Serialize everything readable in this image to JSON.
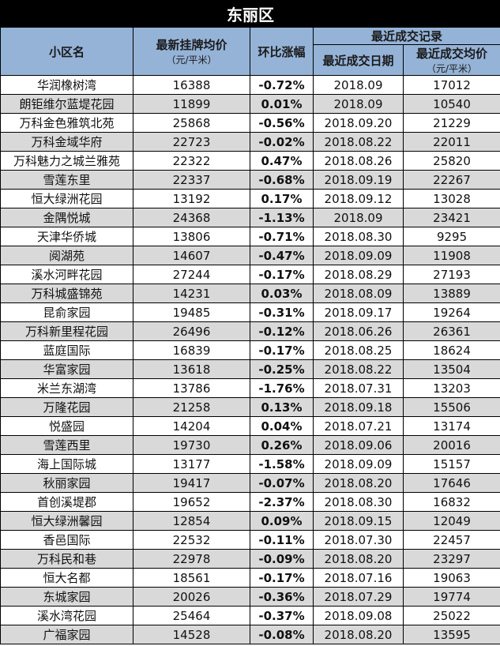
{
  "title": "东丽区",
  "headers": {
    "name": "小区名",
    "listing_price": "最新挂牌均价",
    "listing_unit": "（元/平米）",
    "change": "环比涨幅",
    "recent_group": "最近成交记录",
    "deal_date": "最近成交日期",
    "deal_price": "最近成交均价",
    "deal_unit": "（元/平米）"
  },
  "colors": {
    "header_bg": "#95b3d7",
    "negative": "#00b050",
    "positive": "#ff0000",
    "alt_row": "#d9d9d9"
  },
  "rows": [
    {
      "name": "华润橡树湾",
      "listing": "16388",
      "change": "-0.72%",
      "date": "2018.09",
      "deal": "17012"
    },
    {
      "name": "朗钜维尔蓝堤花园",
      "listing": "11899",
      "change": "0.01%",
      "date": "2018.09",
      "deal": "10540"
    },
    {
      "name": "万科金色雅筑北苑",
      "listing": "25868",
      "change": "-0.56%",
      "date": "2018.09.20",
      "deal": "21229"
    },
    {
      "name": "万科金域华府",
      "listing": "22723",
      "change": "-0.02%",
      "date": "2018.08.22",
      "deal": "22011"
    },
    {
      "name": "万科魅力之城兰雅苑",
      "listing": "22322",
      "change": "0.47%",
      "date": "2018.08.26",
      "deal": "25820"
    },
    {
      "name": "雪莲东里",
      "listing": "22337",
      "change": "-0.68%",
      "date": "2018.09.19",
      "deal": "22267"
    },
    {
      "name": "恒大绿洲花园",
      "listing": "13192",
      "change": "0.17%",
      "date": "2018.09.12",
      "deal": "13028"
    },
    {
      "name": "金隅悦城",
      "listing": "24368",
      "change": "-1.13%",
      "date": "2018.09",
      "deal": "23421"
    },
    {
      "name": "天津华侨城",
      "listing": "13806",
      "change": "-0.71%",
      "date": "2018.08.30",
      "deal": "9295"
    },
    {
      "name": "阅湖苑",
      "listing": "14607",
      "change": "-0.47%",
      "date": "2018.09.09",
      "deal": "11908"
    },
    {
      "name": "溪水河畔花园",
      "listing": "27244",
      "change": "-0.17%",
      "date": "2018.08.29",
      "deal": "27193"
    },
    {
      "name": "万科城盛锦苑",
      "listing": "14231",
      "change": "0.03%",
      "date": "2018.08.09",
      "deal": "13889"
    },
    {
      "name": "昆俞家园",
      "listing": "19485",
      "change": "-0.31%",
      "date": "2018.09.17",
      "deal": "19264"
    },
    {
      "name": "万科新里程花园",
      "listing": "26496",
      "change": "-0.12%",
      "date": "2018.06.26",
      "deal": "26361"
    },
    {
      "name": "蓝庭国际",
      "listing": "16839",
      "change": "-0.17%",
      "date": "2018.08.25",
      "deal": "18624"
    },
    {
      "name": "华富家园",
      "listing": "13618",
      "change": "-0.25%",
      "date": "2018.08.22",
      "deal": "13504"
    },
    {
      "name": "米兰东湖湾",
      "listing": "13786",
      "change": "-1.76%",
      "date": "2018.07.31",
      "deal": "13203"
    },
    {
      "name": "万隆花园",
      "listing": "21258",
      "change": "0.13%",
      "date": "2018.09.18",
      "deal": "15506"
    },
    {
      "name": "悦盛园",
      "listing": "14204",
      "change": "0.04%",
      "date": "2018.07.21",
      "deal": "13174"
    },
    {
      "name": "雪莲西里",
      "listing": "19730",
      "change": "0.26%",
      "date": "2018.09.06",
      "deal": "20016"
    },
    {
      "name": "海上国际城",
      "listing": "13177",
      "change": "-1.58%",
      "date": "2018.09.09",
      "deal": "15157"
    },
    {
      "name": "秋丽家园",
      "listing": "19417",
      "change": "-0.07%",
      "date": "2018.08.20",
      "deal": "17646"
    },
    {
      "name": "首创溪堤郡",
      "listing": "19652",
      "change": "-2.37%",
      "date": "2018.08.30",
      "deal": "16832"
    },
    {
      "name": "恒大绿洲馨园",
      "listing": "12854",
      "change": "0.09%",
      "date": "2018.09.15",
      "deal": "12049"
    },
    {
      "name": "香邑国际",
      "listing": "22532",
      "change": "-0.11%",
      "date": "2018.07.30",
      "deal": "22457"
    },
    {
      "name": "万科民和巷",
      "listing": "22978",
      "change": "-0.09%",
      "date": "2018.08.20",
      "deal": "23297"
    },
    {
      "name": "恒大名都",
      "listing": "18561",
      "change": "-0.17%",
      "date": "2018.07.16",
      "deal": "19063"
    },
    {
      "name": "东城家园",
      "listing": "20026",
      "change": "-0.36%",
      "date": "2018.07.29",
      "deal": "19774"
    },
    {
      "name": "溪水湾花园",
      "listing": "25464",
      "change": "-0.37%",
      "date": "2018.09.08",
      "deal": "25022"
    },
    {
      "name": "广福家园",
      "listing": "14528",
      "change": "-0.08%",
      "date": "2018.08.20",
      "deal": "13595"
    }
  ]
}
